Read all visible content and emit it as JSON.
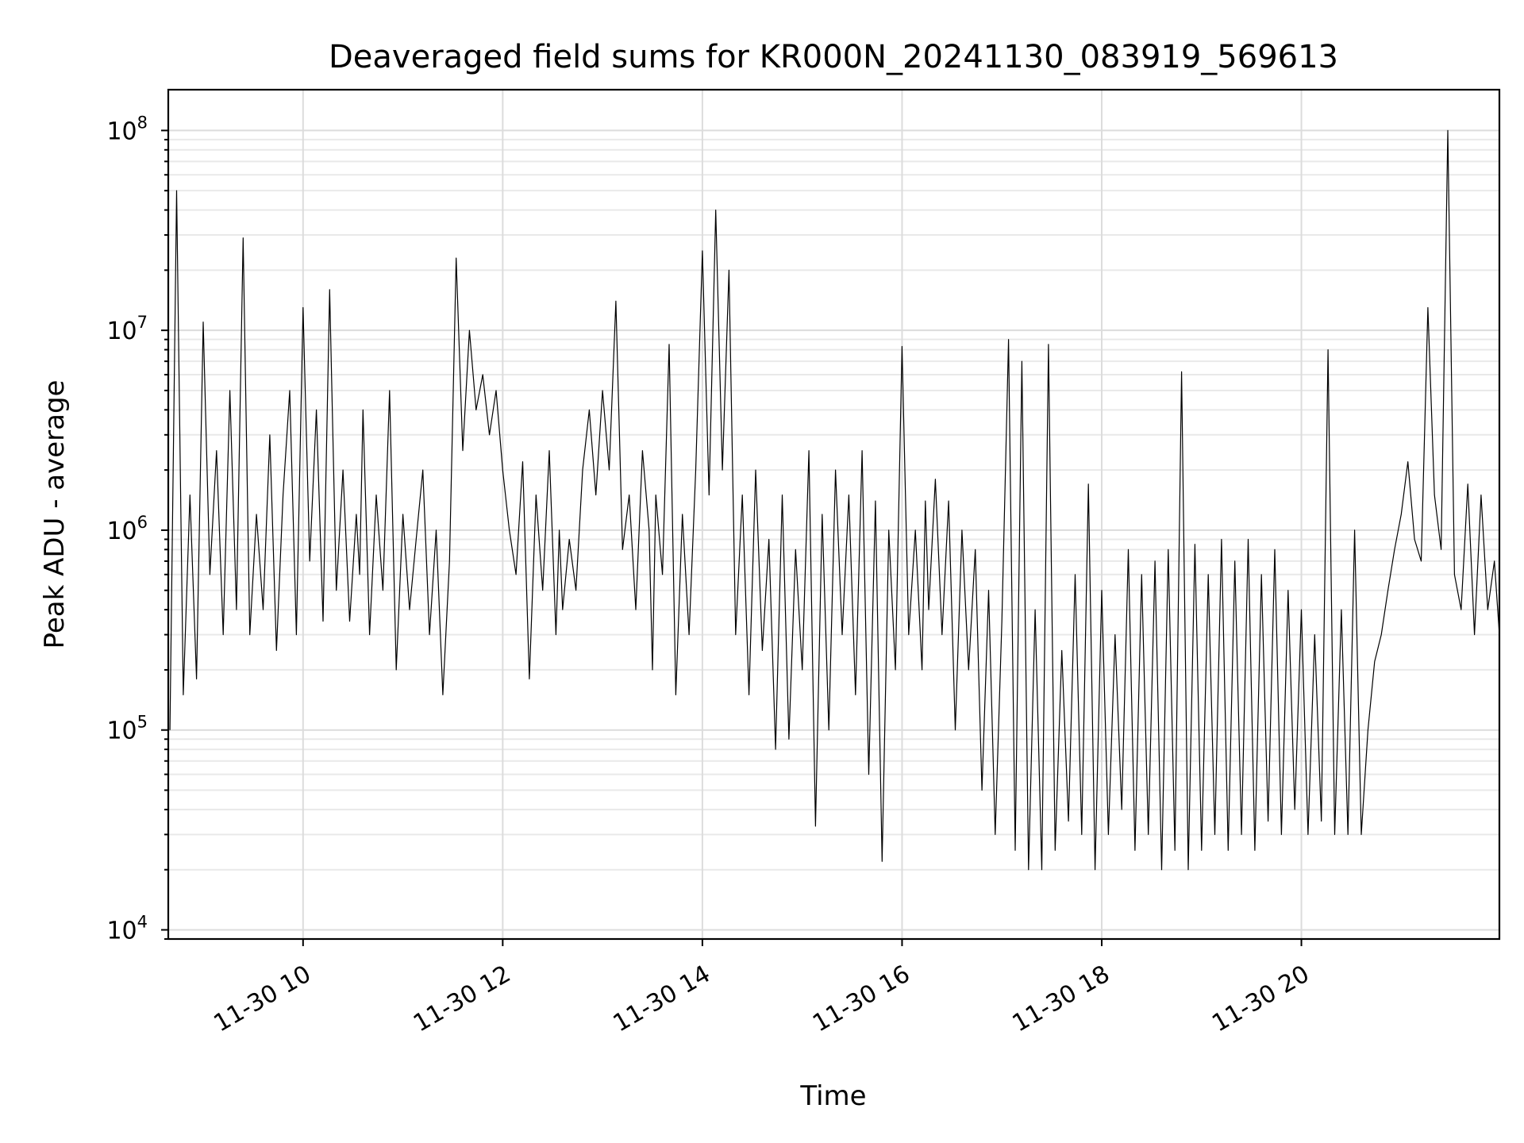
{
  "chart_data": {
    "type": "line",
    "title": "Deaveraged field sums for KR000N_20241130_083919_569613",
    "xlabel": "Time",
    "ylabel": "Peak ADU - average",
    "x_scale": "time",
    "y_scale": "log",
    "xlim": [
      "2024-11-30 08:39",
      "2024-11-30 21:59"
    ],
    "ylim": [
      9000,
      160000000
    ],
    "grid": "on (major and minor)",
    "legend": "none",
    "x_ticks": [
      "11-30 10",
      "11-30 12",
      "11-30 14",
      "11-30 16",
      "11-30 18",
      "11-30 20"
    ],
    "y_ticks": [
      {
        "base": "10",
        "exp": "4"
      },
      {
        "base": "10",
        "exp": "5"
      },
      {
        "base": "10",
        "exp": "6"
      },
      {
        "base": "10",
        "exp": "7"
      },
      {
        "base": "10",
        "exp": "8"
      }
    ],
    "series": [
      {
        "color": "#000000",
        "x": [
          "2024-11-30 08:40",
          "2024-11-30 08:44",
          "2024-11-30 08:48",
          "2024-11-30 08:52",
          "2024-11-30 08:56",
          "2024-11-30 09:00",
          "2024-11-30 09:04",
          "2024-11-30 09:08",
          "2024-11-30 09:12",
          "2024-11-30 09:16",
          "2024-11-30 09:20",
          "2024-11-30 09:24",
          "2024-11-30 09:28",
          "2024-11-30 09:32",
          "2024-11-30 09:36",
          "2024-11-30 09:40",
          "2024-11-30 09:44",
          "2024-11-30 09:48",
          "2024-11-30 09:52",
          "2024-11-30 09:56",
          "2024-11-30 10:00",
          "2024-11-30 10:04",
          "2024-11-30 10:08",
          "2024-11-30 10:12",
          "2024-11-30 10:16",
          "2024-11-30 10:20",
          "2024-11-30 10:24",
          "2024-11-30 10:28",
          "2024-11-30 10:32",
          "2024-11-30 10:34",
          "2024-11-30 10:36",
          "2024-11-30 10:40",
          "2024-11-30 10:44",
          "2024-11-30 10:48",
          "2024-11-30 10:52",
          "2024-11-30 10:56",
          "2024-11-30 11:00",
          "2024-11-30 11:04",
          "2024-11-30 11:08",
          "2024-11-30 11:12",
          "2024-11-30 11:16",
          "2024-11-30 11:20",
          "2024-11-30 11:24",
          "2024-11-30 11:28",
          "2024-11-30 11:32",
          "2024-11-30 11:36",
          "2024-11-30 11:40",
          "2024-11-30 11:44",
          "2024-11-30 11:48",
          "2024-11-30 11:52",
          "2024-11-30 11:56",
          "2024-11-30 12:00",
          "2024-11-30 12:04",
          "2024-11-30 12:08",
          "2024-11-30 12:12",
          "2024-11-30 12:16",
          "2024-11-30 12:20",
          "2024-11-30 12:24",
          "2024-11-30 12:28",
          "2024-11-30 12:32",
          "2024-11-30 12:34",
          "2024-11-30 12:36",
          "2024-11-30 12:40",
          "2024-11-30 12:44",
          "2024-11-30 12:48",
          "2024-11-30 12:52",
          "2024-11-30 12:56",
          "2024-11-30 13:00",
          "2024-11-30 13:04",
          "2024-11-30 13:08",
          "2024-11-30 13:12",
          "2024-11-30 13:16",
          "2024-11-30 13:20",
          "2024-11-30 13:24",
          "2024-11-30 13:28",
          "2024-11-30 13:30",
          "2024-11-30 13:32",
          "2024-11-30 13:36",
          "2024-11-30 13:40",
          "2024-11-30 13:44",
          "2024-11-30 13:48",
          "2024-11-30 13:52",
          "2024-11-30 13:56",
          "2024-11-30 14:00",
          "2024-11-30 14:04",
          "2024-11-30 14:08",
          "2024-11-30 14:12",
          "2024-11-30 14:16",
          "2024-11-30 14:20",
          "2024-11-30 14:24",
          "2024-11-30 14:28",
          "2024-11-30 14:32",
          "2024-11-30 14:36",
          "2024-11-30 14:40",
          "2024-11-30 14:44",
          "2024-11-30 14:48",
          "2024-11-30 14:52",
          "2024-11-30 14:56",
          "2024-11-30 15:00",
          "2024-11-30 15:04",
          "2024-11-30 15:08",
          "2024-11-30 15:12",
          "2024-11-30 15:16",
          "2024-11-30 15:20",
          "2024-11-30 15:24",
          "2024-11-30 15:28",
          "2024-11-30 15:32",
          "2024-11-30 15:36",
          "2024-11-30 15:40",
          "2024-11-30 15:44",
          "2024-11-30 15:48",
          "2024-11-30 15:52",
          "2024-11-30 15:56",
          "2024-11-30 16:00",
          "2024-11-30 16:04",
          "2024-11-30 16:08",
          "2024-11-30 16:12",
          "2024-11-30 16:14",
          "2024-11-30 16:16",
          "2024-11-30 16:20",
          "2024-11-30 16:24",
          "2024-11-30 16:28",
          "2024-11-30 16:32",
          "2024-11-30 16:36",
          "2024-11-30 16:40",
          "2024-11-30 16:44",
          "2024-11-30 16:48",
          "2024-11-30 16:52",
          "2024-11-30 16:56",
          "2024-11-30 17:00",
          "2024-11-30 17:04",
          "2024-11-30 17:08",
          "2024-11-30 17:12",
          "2024-11-30 17:16",
          "2024-11-30 17:20",
          "2024-11-30 17:24",
          "2024-11-30 17:28",
          "2024-11-30 17:32",
          "2024-11-30 17:36",
          "2024-11-30 17:40",
          "2024-11-30 17:44",
          "2024-11-30 17:48",
          "2024-11-30 17:52",
          "2024-11-30 17:56",
          "2024-11-30 18:00",
          "2024-11-30 18:04",
          "2024-11-30 18:08",
          "2024-11-30 18:12",
          "2024-11-30 18:16",
          "2024-11-30 18:20",
          "2024-11-30 18:24",
          "2024-11-30 18:28",
          "2024-11-30 18:32",
          "2024-11-30 18:36",
          "2024-11-30 18:40",
          "2024-11-30 18:44",
          "2024-11-30 18:48",
          "2024-11-30 18:52",
          "2024-11-30 18:56",
          "2024-11-30 19:00",
          "2024-11-30 19:04",
          "2024-11-30 19:08",
          "2024-11-30 19:12",
          "2024-11-30 19:16",
          "2024-11-30 19:20",
          "2024-11-30 19:24",
          "2024-11-30 19:28",
          "2024-11-30 19:32",
          "2024-11-30 19:36",
          "2024-11-30 19:40",
          "2024-11-30 19:44",
          "2024-11-30 19:48",
          "2024-11-30 19:52",
          "2024-11-30 19:56",
          "2024-11-30 20:00",
          "2024-11-30 20:04",
          "2024-11-30 20:08",
          "2024-11-30 20:12",
          "2024-11-30 20:16",
          "2024-11-30 20:20",
          "2024-11-30 20:24",
          "2024-11-30 20:28",
          "2024-11-30 20:32",
          "2024-11-30 20:36",
          "2024-11-30 20:40",
          "2024-11-30 20:44",
          "2024-11-30 20:48",
          "2024-11-30 20:52",
          "2024-11-30 20:56",
          "2024-11-30 21:00",
          "2024-11-30 21:04",
          "2024-11-30 21:08",
          "2024-11-30 21:12",
          "2024-11-30 21:16",
          "2024-11-30 21:20",
          "2024-11-30 21:24",
          "2024-11-30 21:28",
          "2024-11-30 21:32",
          "2024-11-30 21:36",
          "2024-11-30 21:40",
          "2024-11-30 21:44",
          "2024-11-30 21:48",
          "2024-11-30 21:52",
          "2024-11-30 21:56",
          "2024-11-30 21:59"
        ],
        "y": [
          100000,
          50000000,
          150000,
          1500000,
          180000,
          11000000,
          600000,
          2500000,
          300000,
          5000000,
          400000,
          29000000,
          300000,
          1200000,
          400000,
          3000000,
          250000,
          1500000,
          5000000,
          300000,
          13000000,
          700000,
          4000000,
          350000,
          16000000,
          500000,
          2000000,
          350000,
          1200000,
          600000,
          4000000,
          300000,
          1500000,
          500000,
          5000000,
          200000,
          1200000,
          400000,
          900000,
          2000000,
          300000,
          1000000,
          150000,
          700000,
          23000000,
          2500000,
          10000000,
          4000000,
          6000000,
          3000000,
          5000000,
          2000000,
          1000000,
          600000,
          2200000,
          180000,
          1500000,
          500000,
          2500000,
          300000,
          1000000,
          400000,
          900000,
          500000,
          2000000,
          4000000,
          1500000,
          5000000,
          2000000,
          14000000,
          800000,
          1500000,
          400000,
          2500000,
          1000000,
          200000,
          1500000,
          600000,
          8500000,
          150000,
          1200000,
          300000,
          2000000,
          25000000,
          1500000,
          40000000,
          2000000,
          20000000,
          300000,
          1500000,
          150000,
          2000000,
          250000,
          900000,
          80000,
          1500000,
          90000,
          800000,
          200000,
          2500000,
          33000,
          1200000,
          100000,
          2000000,
          300000,
          1500000,
          150000,
          2500000,
          60000,
          1400000,
          22000,
          1000000,
          200000,
          8300000,
          300000,
          1000000,
          200000,
          1400000,
          400000,
          1800000,
          300000,
          1400000,
          100000,
          1000000,
          200000,
          800000,
          50000,
          500000,
          30000,
          350000,
          9000000,
          25000,
          7000000,
          20000,
          400000,
          20000,
          8500000,
          25000,
          250000,
          35000,
          600000,
          30000,
          1700000,
          20000,
          500000,
          30000,
          300000,
          40000,
          800000,
          25000,
          600000,
          30000,
          700000,
          20000,
          800000,
          25000,
          6200000,
          20000,
          850000,
          25000,
          600000,
          30000,
          900000,
          25000,
          700000,
          30000,
          900000,
          25000,
          600000,
          35000,
          800000,
          30000,
          500000,
          40000,
          400000,
          30000,
          300000,
          35000,
          8000000,
          30000,
          400000,
          30000,
          1000000,
          30000,
          100000,
          220000,
          300000,
          500000,
          800000,
          1200000,
          2200000,
          900000,
          700000,
          13000000,
          1500000,
          800000,
          100000000,
          600000,
          400000,
          1700000,
          300000,
          1500000,
          400000,
          700000,
          300000
        ]
      }
    ]
  }
}
